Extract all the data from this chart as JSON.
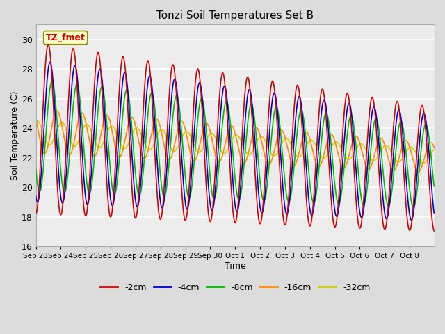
{
  "title": "Tonzi Soil Temperatures Set B",
  "xlabel": "Time",
  "ylabel": "Soil Temperature (C)",
  "ylim": [
    16,
    31
  ],
  "yticks": [
    16,
    18,
    20,
    22,
    24,
    26,
    28,
    30
  ],
  "legend_label": "TZ_fmet",
  "series_labels": [
    "-2cm",
    "-4cm",
    "-8cm",
    "-16cm",
    "-32cm"
  ],
  "series_colors": [
    "#cc0000",
    "#0000cc",
    "#00bb00",
    "#ff8800",
    "#cccc00"
  ],
  "background_color": "#dcdcdc",
  "plot_bg_color": "#ececec",
  "x_tick_labels": [
    "Sep 23",
    "Sep 24",
    "Sep 25",
    "Sep 26",
    "Sep 27",
    "Sep 28",
    "Sep 29",
    "Sep 30",
    "Oct 1",
    "Oct 2",
    "Oct 3",
    "Oct 4",
    "Oct 5",
    "Oct 6",
    "Oct 7",
    "Oct 8"
  ],
  "num_days": 16
}
